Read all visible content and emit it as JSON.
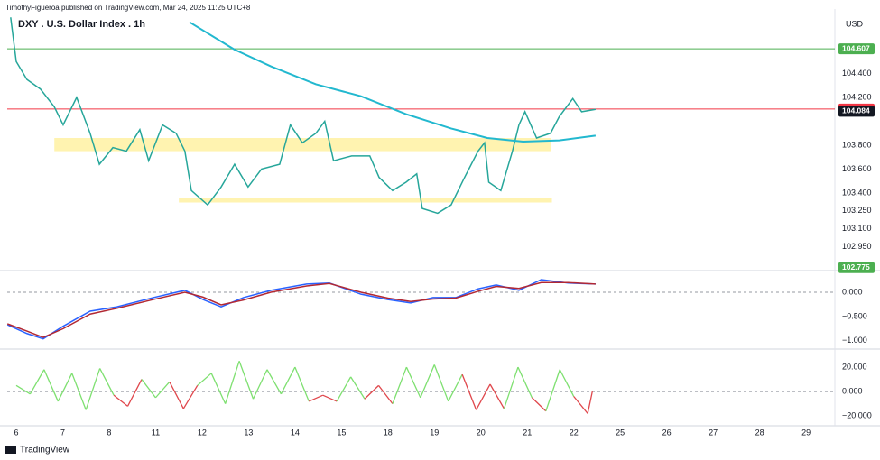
{
  "header": "TimothyFigueroa published on TradingView.com, Mar 24, 2025 11:25 UTC+8",
  "footer": "TradingView",
  "currency": "USD",
  "chart_data": [
    {
      "type": "line",
      "title": "DXY . U.S. Dollar Index . 1h",
      "xlim": [
        -0.194,
        17.62
      ],
      "xticks": [
        {
          "value": 0,
          "label": "6"
        },
        {
          "value": 1,
          "label": "7"
        },
        {
          "value": 2,
          "label": "8"
        },
        {
          "value": 3,
          "label": "11"
        },
        {
          "value": 4,
          "label": "12"
        },
        {
          "value": 5,
          "label": "13"
        },
        {
          "value": 6,
          "label": "14"
        },
        {
          "value": 7,
          "label": "15"
        },
        {
          "value": 8,
          "label": "18"
        },
        {
          "value": 9,
          "label": "19"
        },
        {
          "value": 10,
          "label": "20"
        },
        {
          "value": 11,
          "label": "21"
        },
        {
          "value": 12,
          "label": "22"
        },
        {
          "value": 13,
          "label": "25"
        },
        {
          "value": 14,
          "label": "26"
        },
        {
          "value": 15,
          "label": "27"
        },
        {
          "value": 16,
          "label": "28"
        },
        {
          "value": 17,
          "label": "29"
        }
      ],
      "ylim": [
        102.75,
        104.94
      ],
      "yticks": [
        {
          "value": 104.4,
          "label": "104.400"
        },
        {
          "value": 104.2,
          "label": "104.200"
        },
        {
          "value": 103.8,
          "label": "103.800"
        },
        {
          "value": 103.6,
          "label": "103.600"
        },
        {
          "value": 103.4,
          "label": "103.400"
        },
        {
          "value": 103.25,
          "label": "103.250"
        },
        {
          "value": 103.1,
          "label": "103.100"
        },
        {
          "value": 102.95,
          "label": "102.950"
        }
      ],
      "zones": [
        {
          "range": [
            103.75,
            103.86
          ],
          "xrange": [
            0.82,
            11.5
          ],
          "color": "#fff3b0"
        },
        {
          "range": [
            103.32,
            103.36
          ],
          "xrange": [
            3.5,
            11.53
          ],
          "color": "#fff3b0"
        }
      ],
      "hlines": [
        {
          "value": 104.607,
          "color": "#4caf50"
        },
        {
          "value": 104.103,
          "color": "#f23645"
        },
        {
          "value": 104.084,
          "color": "#131722"
        },
        {
          "value": 102.775,
          "color": "#4caf50"
        }
      ],
      "series": [
        {
          "color": "#26a69a",
          "x": [
            -0.12,
            0,
            0.23,
            0.52,
            0.82,
            1.01,
            1.3,
            1.59,
            1.79,
            2.08,
            2.37,
            2.66,
            2.85,
            3.15,
            3.44,
            3.63,
            3.77,
            4.12,
            4.41,
            4.7,
            4.99,
            5.28,
            5.67,
            5.9,
            6.16,
            6.45,
            6.64,
            6.83,
            7.22,
            7.61,
            7.81,
            8.1,
            8.39,
            8.62,
            8.74,
            9.07,
            9.36,
            9.65,
            9.94,
            10.08,
            10.17,
            10.43,
            10.68,
            10.82,
            10.95,
            11.2,
            11.5,
            11.69,
            11.98,
            12.17,
            12.47
          ],
          "values": [
            104.87,
            104.5,
            104.35,
            104.27,
            104.12,
            103.97,
            104.2,
            103.9,
            103.64,
            103.78,
            103.75,
            103.93,
            103.67,
            103.97,
            103.9,
            103.75,
            103.42,
            103.3,
            103.45,
            103.64,
            103.45,
            103.6,
            103.64,
            103.97,
            103.82,
            103.9,
            104.0,
            103.67,
            103.71,
            103.71,
            103.53,
            103.42,
            103.49,
            103.56,
            103.27,
            103.23,
            103.3,
            103.53,
            103.75,
            103.82,
            103.49,
            103.42,
            103.75,
            103.97,
            104.08,
            103.86,
            103.9,
            104.04,
            104.19,
            104.08,
            104.1
          ]
        },
        {
          "color": "#22b8cf",
          "x": [
            3.73,
            4.7,
            5.48,
            6.45,
            7.42,
            8.39,
            9.36,
            10.14,
            10.91,
            11.69,
            12.47
          ],
          "values": [
            104.83,
            104.6,
            104.46,
            104.31,
            104.21,
            104.06,
            103.94,
            103.86,
            103.83,
            103.84,
            103.88
          ]
        }
      ]
    },
    {
      "type": "line",
      "ylim": [
        -1.17,
        0.39
      ],
      "yticks": [
        {
          "value": 0,
          "label": "0.000"
        },
        {
          "value": -0.5,
          "label": "−0.500"
        },
        {
          "value": -1,
          "label": "−1.000"
        }
      ],
      "series": [
        {
          "color": "#2962ff",
          "x": [
            -0.19,
            0.23,
            0.58,
            1.01,
            1.59,
            2.17,
            2.95,
            3.63,
            4.02,
            4.41,
            4.89,
            5.48,
            6.25,
            6.74,
            7.42,
            8.0,
            8.49,
            8.97,
            9.46,
            9.94,
            10.33,
            10.82,
            11.3,
            11.88,
            12.47
          ],
          "values": [
            -0.67,
            -0.85,
            -0.96,
            -0.7,
            -0.39,
            -0.3,
            -0.11,
            0.04,
            -0.15,
            -0.3,
            -0.11,
            0.04,
            0.17,
            0.19,
            -0.04,
            -0.15,
            -0.22,
            -0.11,
            -0.11,
            0.07,
            0.15,
            0.04,
            0.26,
            0.19,
            0.17
          ]
        },
        {
          "color": "#b22833",
          "x": [
            -0.19,
            0.23,
            0.58,
            1.01,
            1.59,
            2.17,
            2.95,
            3.63,
            4.02,
            4.41,
            4.89,
            5.48,
            6.25,
            6.74,
            7.42,
            8.0,
            8.49,
            8.97,
            9.46,
            9.94,
            10.33,
            10.82,
            11.3,
            11.88,
            12.47
          ],
          "values": [
            -0.65,
            -0.8,
            -0.93,
            -0.75,
            -0.45,
            -0.33,
            -0.15,
            0.0,
            -0.1,
            -0.26,
            -0.16,
            0.0,
            0.13,
            0.18,
            0.0,
            -0.12,
            -0.19,
            -0.14,
            -0.12,
            0.02,
            0.12,
            0.08,
            0.2,
            0.2,
            0.17
          ]
        }
      ]
    },
    {
      "type": "oscillator",
      "ylim": [
        -28,
        32.6
      ],
      "yticks": [
        {
          "value": 20,
          "label": "20.000"
        },
        {
          "value": 0,
          "label": "0.000"
        },
        {
          "value": -20,
          "label": "−20.000"
        }
      ],
      "up_color": "#7ee070",
      "down_color": "#e0474c",
      "x": [
        0,
        0.3,
        0.6,
        0.9,
        1.2,
        1.5,
        1.8,
        2.1,
        2.4,
        2.7,
        3.0,
        3.3,
        3.6,
        3.9,
        4.2,
        4.5,
        4.8,
        5.1,
        5.4,
        5.7,
        6.0,
        6.3,
        6.6,
        6.9,
        7.2,
        7.5,
        7.8,
        8.1,
        8.4,
        8.7,
        9.0,
        9.3,
        9.6,
        9.9,
        10.2,
        10.5,
        10.8,
        11.1,
        11.4,
        11.7,
        12.0,
        12.3,
        12.4
      ],
      "values": [
        5,
        -2,
        18,
        -8,
        15,
        -15,
        19,
        -3,
        -12,
        10,
        -5,
        8,
        -14,
        5,
        15,
        -10,
        25,
        -6,
        18,
        -2,
        20,
        -8,
        -3,
        -8,
        12,
        -6,
        5,
        -10,
        20,
        -5,
        22,
        -8,
        14,
        -15,
        6,
        -14,
        20,
        -5,
        -16,
        18,
        -4,
        -18,
        0
      ]
    }
  ]
}
